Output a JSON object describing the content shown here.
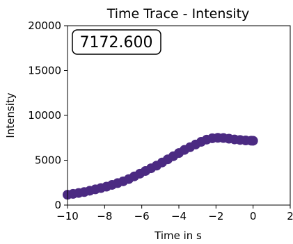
{
  "chart_data": {
    "type": "scatter",
    "title": "Time Trace - Intensity",
    "xlabel": "Time in s",
    "ylabel": "Intensity",
    "xlim": [
      -10,
      2
    ],
    "ylim": [
      0,
      20000
    ],
    "x_ticks": [
      -10,
      -8,
      -6,
      -4,
      -2,
      0,
      2
    ],
    "x_tick_labels": [
      "−10",
      "−8",
      "−6",
      "−4",
      "−2",
      "0",
      "2"
    ],
    "y_ticks": [
      0,
      5000,
      10000,
      15000,
      20000
    ],
    "y_tick_labels": [
      "0",
      "5000",
      "10000",
      "15000",
      "20000"
    ],
    "grid": false,
    "readout": "7172.600",
    "series": [
      {
        "color": "#4b2a82",
        "x": [
          -10.0,
          -9.7,
          -9.4,
          -9.1,
          -8.8,
          -8.5,
          -8.2,
          -7.9,
          -7.6,
          -7.3,
          -7.0,
          -6.7,
          -6.4,
          -6.1,
          -5.8,
          -5.5,
          -5.2,
          -4.9,
          -4.6,
          -4.3,
          -4.0,
          -3.7,
          -3.4,
          -3.1,
          -2.8,
          -2.5,
          -2.2,
          -1.9,
          -1.6,
          -1.3,
          -1.0,
          -0.7,
          -0.4,
          -0.1,
          0.0
        ],
        "y": [
          1150,
          1250,
          1350,
          1450,
          1600,
          1750,
          1900,
          2050,
          2250,
          2450,
          2650,
          2900,
          3200,
          3500,
          3800,
          4100,
          4400,
          4750,
          5100,
          5450,
          5800,
          6150,
          6450,
          6750,
          7050,
          7300,
          7450,
          7500,
          7480,
          7400,
          7320,
          7260,
          7210,
          7180,
          7172.6
        ]
      }
    ]
  }
}
